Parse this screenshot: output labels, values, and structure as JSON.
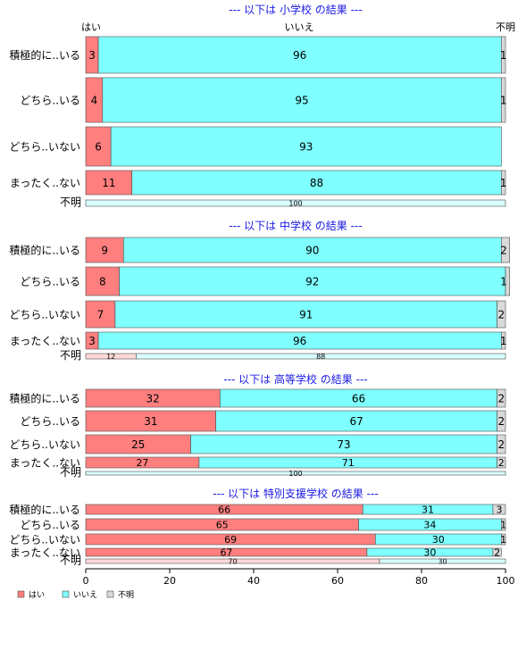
{
  "chart_data": {
    "type": "bar",
    "stacked": "percent",
    "orientation": "horizontal",
    "colors": {
      "はい": "#ff7f7f",
      "いいえ": "#7fffff",
      "不明": "#d9d9d9"
    },
    "header_labels": [
      "はい",
      "いいえ",
      "不明"
    ],
    "x_ticks": [
      0,
      20,
      40,
      60,
      80,
      100
    ],
    "xlim": [
      0,
      100
    ],
    "legend": {
      "position": "bottom-left",
      "entries": [
        "はい",
        "いいえ",
        "不明"
      ]
    },
    "panels": [
      {
        "title": "--- 以下は 小学校 の結果 ---",
        "categories": [
          "積極的に..いる",
          "どちら..いる",
          "どちら..いない",
          "まったく..ない",
          "不明"
        ],
        "series": [
          {
            "name": "はい",
            "values": [
              3,
              4,
              6,
              11,
              0
            ]
          },
          {
            "name": "いいえ",
            "values": [
              96,
              95,
              93,
              88,
              100
            ]
          },
          {
            "name": "不明",
            "values": [
              1,
              1,
              0,
              1,
              0
            ]
          }
        ]
      },
      {
        "title": "--- 以下は 中学校 の結果 ---",
        "categories": [
          "積極的に..いる",
          "どちら..いる",
          "どちら..いない",
          "まったく..ない",
          "不明"
        ],
        "series": [
          {
            "name": "はい",
            "values": [
              9,
              8,
              7,
              3,
              12
            ]
          },
          {
            "name": "いいえ",
            "values": [
              90,
              92,
              91,
              96,
              88
            ]
          },
          {
            "name": "不明",
            "values": [
              2,
              1,
              2,
              1,
              0
            ]
          }
        ]
      },
      {
        "title": "--- 以下は 高等学校 の結果 ---",
        "categories": [
          "積極的に..いる",
          "どちら..いる",
          "どちら..いない",
          "まったく..ない",
          "不明"
        ],
        "series": [
          {
            "name": "はい",
            "values": [
              32,
              31,
              25,
              27,
              0
            ]
          },
          {
            "name": "いいえ",
            "values": [
              66,
              67,
              73,
              71,
              100
            ]
          },
          {
            "name": "不明",
            "values": [
              2,
              2,
              2,
              2,
              0
            ]
          }
        ]
      },
      {
        "title": "--- 以下は 特別支援学校 の結果 ---",
        "categories": [
          "積極的に..いる",
          "どちら..いる",
          "どちら..いない",
          "まったく..ない",
          "不明"
        ],
        "series": [
          {
            "name": "はい",
            "values": [
              66,
              65,
              69,
              67,
              70
            ]
          },
          {
            "name": "いいえ",
            "values": [
              31,
              34,
              30,
              30,
              30
            ]
          },
          {
            "name": "不明",
            "values": [
              3,
              1,
              1,
              2,
              0
            ]
          }
        ]
      }
    ]
  }
}
